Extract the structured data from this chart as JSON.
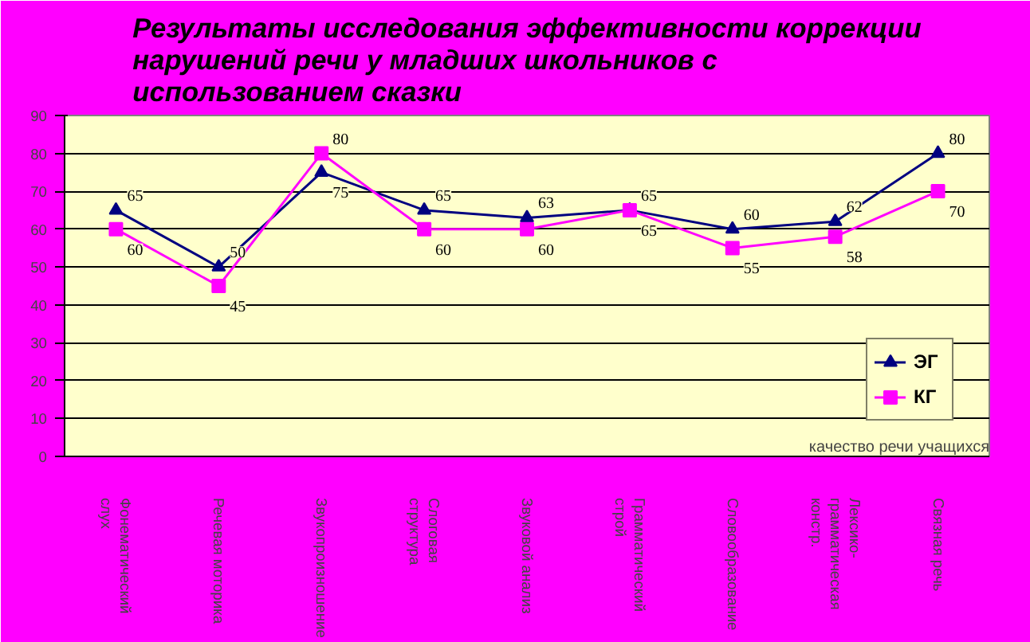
{
  "chart_data": {
    "type": "line",
    "title": "Результаты исследования эффективности коррекции нарушений речи у младших школьников с использованием сказки",
    "xlabel": "качество речи учащихся",
    "categories": [
      "Фонематический слух",
      "Речевая моторика",
      "Звукопроизношение",
      "Слоговая структура",
      "Звуковой анализ",
      "Грамматический строй",
      "Словообразование",
      "Лексико-грамматическая констр.",
      "Связная речь"
    ],
    "series": [
      {
        "name": "ЭГ",
        "color": "#000080",
        "marker": "triangle",
        "values": [
          65,
          50,
          75,
          65,
          63,
          65,
          60,
          62,
          80
        ]
      },
      {
        "name": "КГ",
        "color": "#ff00ff",
        "marker": "square",
        "values": [
          60,
          45,
          80,
          60,
          60,
          65,
          55,
          58,
          70
        ]
      }
    ],
    "ylim": [
      0,
      90
    ],
    "yticks": [
      0,
      10,
      20,
      30,
      40,
      50,
      60,
      70,
      80,
      90
    ],
    "grid": "y",
    "legend": "bottom right",
    "data_labels": true
  }
}
